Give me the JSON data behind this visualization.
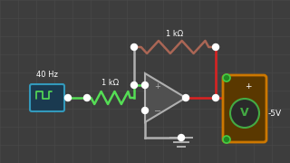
{
  "bg_color": "#3d3d3d",
  "grid_color": "#484848",
  "wire_gray": "#b0b0b0",
  "wire_green": "#55dd55",
  "wire_red": "#dd2222",
  "wire_brown": "#aa6655",
  "node_white": "#ffffff",
  "opamp_fill": "#555555",
  "opamp_edge": "#b0b0b0",
  "source_fill": "#1a3a50",
  "source_edge": "#3399bb",
  "voltmeter_fill": "#5a3800",
  "voltmeter_edge": "#cc7700",
  "vm_circle_fill": "#2a2a2a",
  "vm_circle_edge": "#44aa44",
  "vm_terminal_fill": "#228822",
  "vm_terminal_edge": "#44cc44",
  "text_color": "#ffffff",
  "label_40hz": "40 Hz",
  "label_1kohm_top": "1 kΩ",
  "label_1kohm_mid": "1 kΩ",
  "label_minus5v": "-5V",
  "node_r": 3.5,
  "lw_wire": 1.8,
  "fig_w": 3.2,
  "fig_h": 1.8,
  "dpi": 100
}
